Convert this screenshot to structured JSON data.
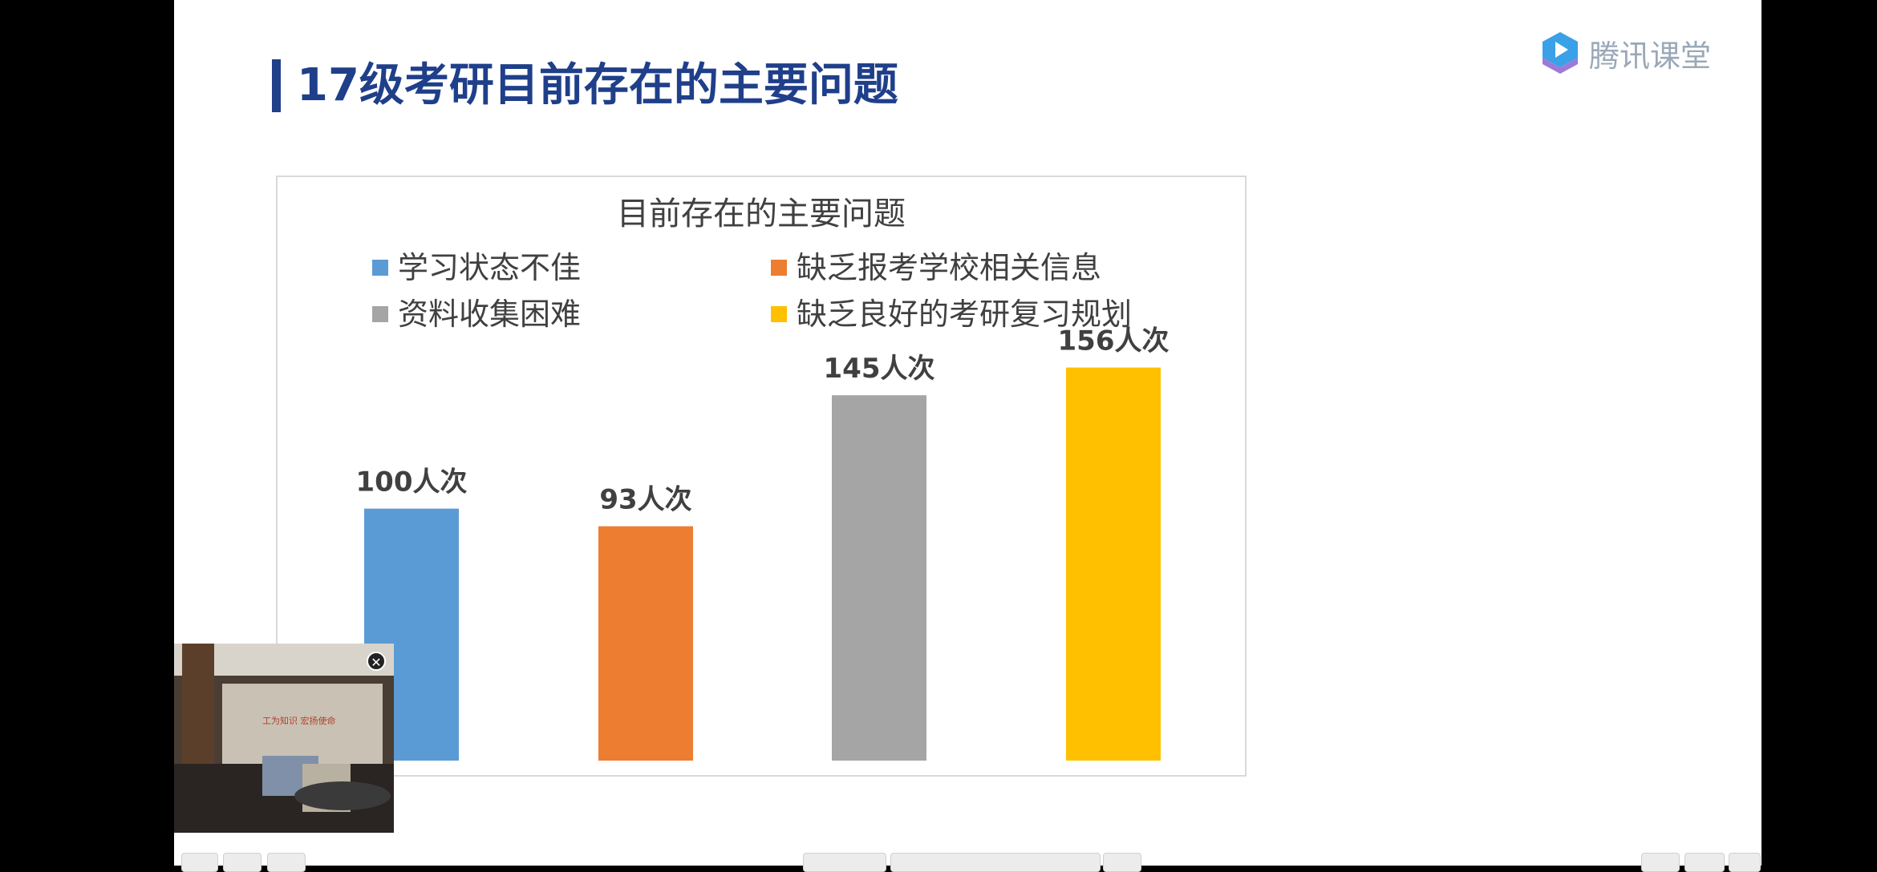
{
  "slide": {
    "title": "17级考研目前存在的主要问题",
    "accent_color": "#1f3f8a"
  },
  "brand": {
    "name": "腾讯课堂",
    "logo_icon": "tencent-classroom-logo-icon"
  },
  "webcam": {
    "close_icon": "close-icon",
    "wall_text": "工为知识  宏扬使命"
  },
  "chart_data": {
    "type": "bar",
    "title": "目前存在的主要问题",
    "categories": [
      "学习状态不佳",
      "缺乏报考学校相关信息",
      "资料收集困难",
      "缺乏良好的考研复习规划"
    ],
    "values": [
      100,
      93,
      145,
      156
    ],
    "data_labels": [
      "100人次",
      "93人次",
      "145人次",
      "156人次"
    ],
    "colors": [
      "#5b9bd5",
      "#ed7d31",
      "#a5a5a5",
      "#ffc000"
    ],
    "legend_position": "top",
    "grid": false,
    "ylim": [
      0,
      160
    ]
  }
}
